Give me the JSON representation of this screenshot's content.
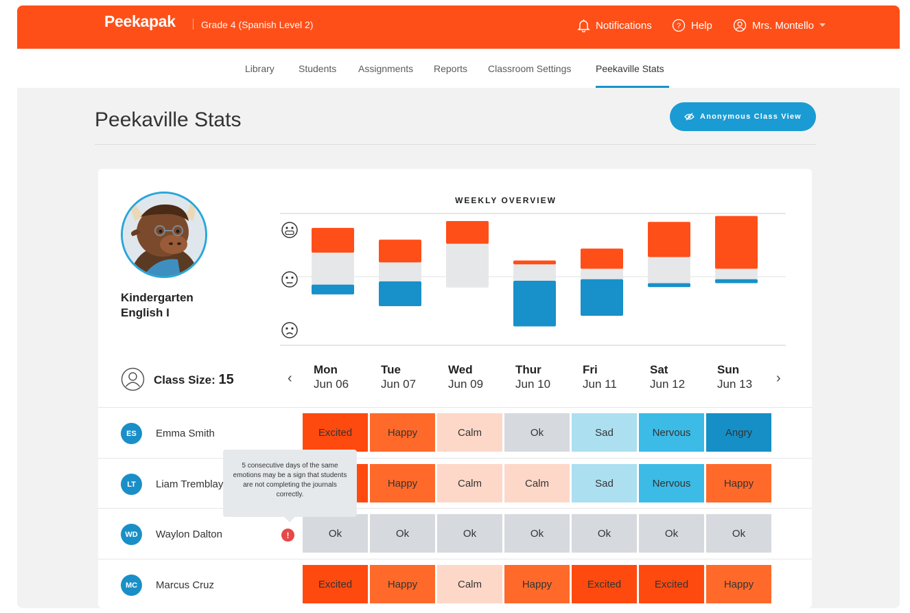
{
  "app": {
    "logo": "Peekapak",
    "grade": "Grade 4 (Spanish Level 2)"
  },
  "topnav": {
    "notifications": "Notifications",
    "help": "Help",
    "user": "Mrs. Montello"
  },
  "tabs": [
    "Library",
    "Students",
    "Assignments",
    "Reports",
    "Classroom Settings",
    "Peekaville Stats"
  ],
  "active_tab": "Peekaville Stats",
  "page": {
    "title": "Peekaville Stats",
    "anon_button": "Anonymous Class View"
  },
  "class": {
    "name_line1": "Kindergarten",
    "name_line2": "English I",
    "size_label": "Class Size:",
    "size": "15"
  },
  "chart_data": {
    "type": "bar",
    "title": "WEEKLY OVERVIEW",
    "categories": [
      "Mon Jun 06",
      "Tue Jun 07",
      "Wed Jun 09",
      "Thur Jun 10",
      "Fri Jun 11",
      "Sat Jun 12",
      "Sun Jun 13"
    ],
    "series": [
      {
        "color": "#ff4f18",
        "values": [
          0.38,
          0.35,
          0.35,
          0.06,
          0.31,
          0.54,
          0.81
        ]
      },
      {
        "color": "#e6e7e9",
        "values": [
          0.49,
          0.29,
          0.67,
          0.25,
          0.16,
          0.4,
          0.16
        ]
      },
      {
        "color": "#1890c9",
        "values": [
          0.15,
          0.38,
          0.0,
          0.7,
          0.56,
          0.06,
          0.06
        ]
      }
    ],
    "icons": [
      "happy-face-icon",
      "neutral-face-icon",
      "sad-face-icon"
    ]
  },
  "days": [
    {
      "name": "Mon",
      "date": "Jun 06"
    },
    {
      "name": "Tue",
      "date": "Jun 07"
    },
    {
      "name": "Wed",
      "date": "Jun 09"
    },
    {
      "name": "Thur",
      "date": "Jun 10"
    },
    {
      "name": "Fri",
      "date": "Jun 11"
    },
    {
      "name": "Sat",
      "date": "Jun 12"
    },
    {
      "name": "Sun",
      "date": "Jun 13"
    }
  ],
  "mood_colors": {
    "Excited": "#ff4a0f",
    "Happy": "#ff6a2b",
    "Calm": "#fdd8c8",
    "Ok": "#d6d9de",
    "Sad": "#acdff0",
    "Nervous": "#3bbbe6",
    "Angry": "#168fc7"
  },
  "students": [
    {
      "initials": "ES",
      "name": "Emma Smith",
      "moods": [
        "Excited",
        "Happy",
        "Calm",
        "Ok",
        "Sad",
        "Nervous",
        "Angry"
      ]
    },
    {
      "initials": "LT",
      "name": "Liam Tremblay",
      "moods": [
        "Excited",
        "Happy",
        "Calm",
        "Calm",
        "Sad",
        "Nervous",
        "Happy"
      ]
    },
    {
      "initials": "WD",
      "name": "Waylon Dalton",
      "moods": [
        "Ok",
        "Ok",
        "Ok",
        "Ok",
        "Ok",
        "Ok",
        "Ok"
      ],
      "warning": "!"
    },
    {
      "initials": "MC",
      "name": "Marcus Cruz",
      "moods": [
        "Excited",
        "Happy",
        "Calm",
        "Happy",
        "Excited",
        "Excited",
        "Happy"
      ]
    }
  ],
  "tooltip": "5 consecutive days of the same emotions may be a sign that students are not completing the journals correctly."
}
